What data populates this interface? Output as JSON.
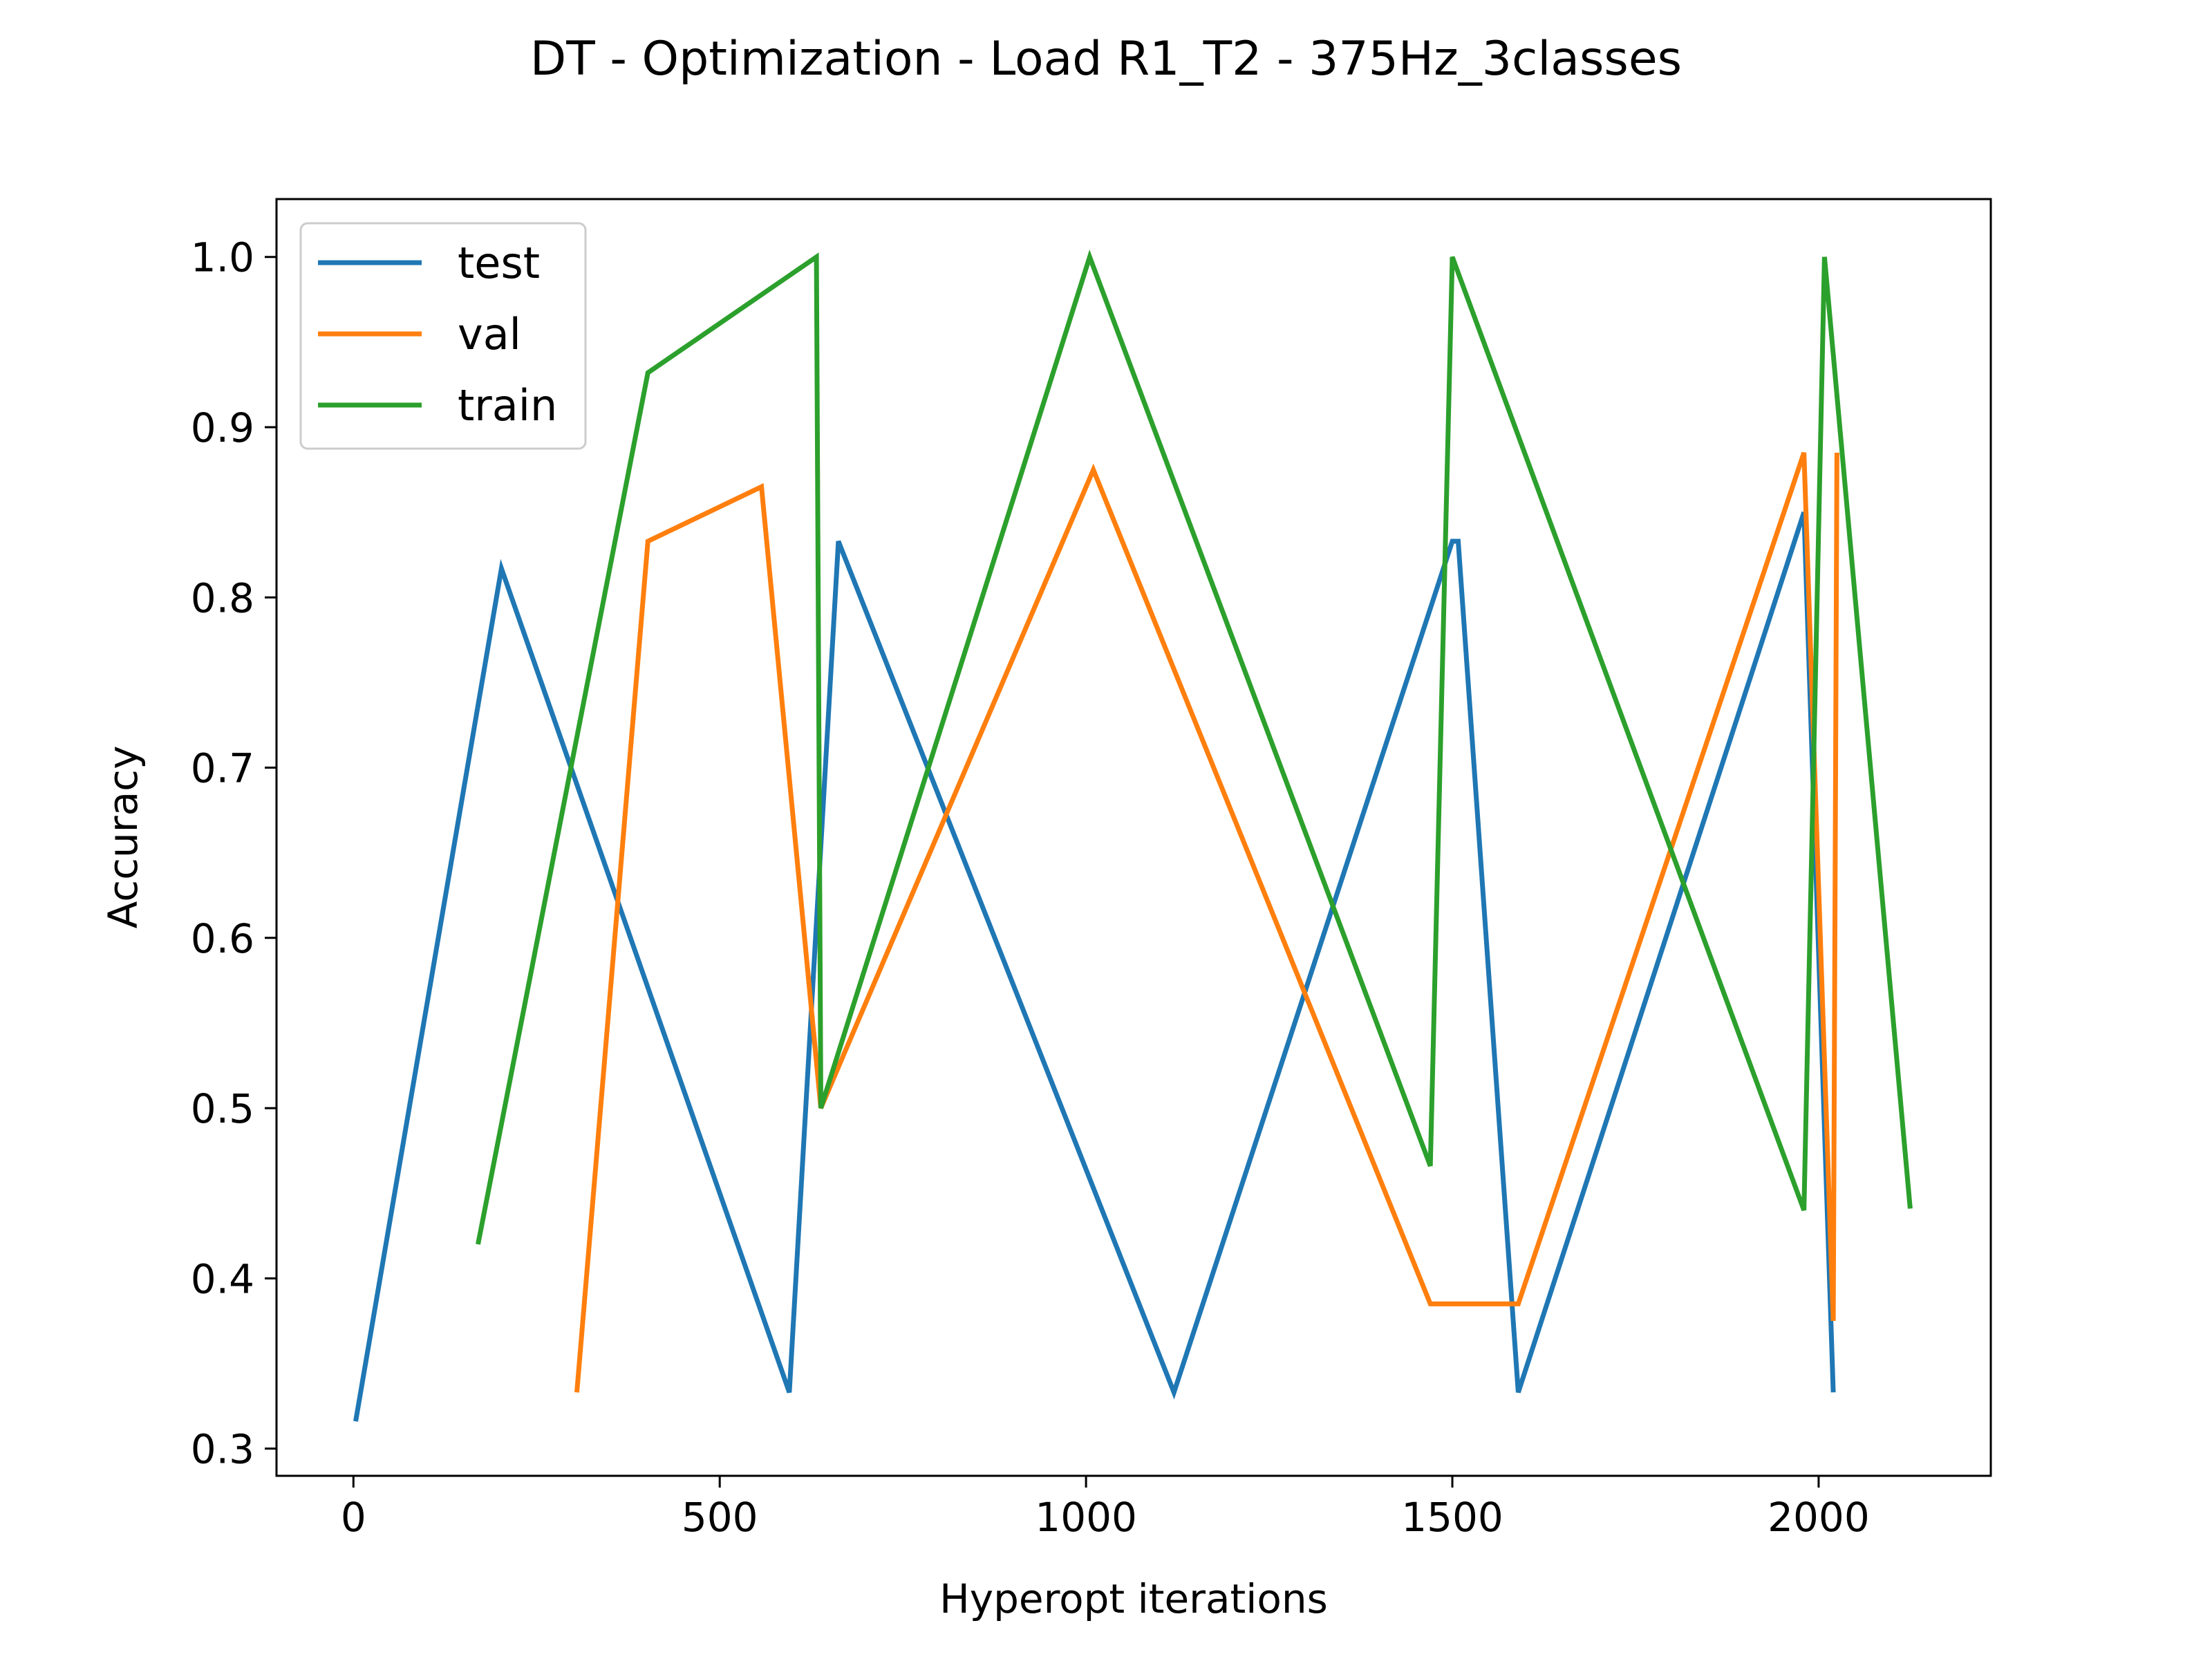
{
  "chart_data": {
    "type": "line",
    "title": "DT - Optimization - Load R1_T2 - 375Hz_3classes",
    "xlabel": "Hyperopt iterations",
    "ylabel": "Accuracy",
    "xlim": [
      -105,
      2235
    ],
    "ylim": [
      0.284,
      1.034
    ],
    "xticks": [
      0,
      500,
      1000,
      1500,
      2000
    ],
    "xtick_labels": [
      "0",
      "500",
      "1000",
      "1500",
      "2000"
    ],
    "yticks": [
      0.3,
      0.4,
      0.5,
      0.6,
      0.7,
      0.8,
      0.9,
      1.0
    ],
    "ytick_labels": [
      "0.3",
      "0.4",
      "0.5",
      "0.6",
      "0.7",
      "0.8",
      "0.9",
      "1.0"
    ],
    "grid": false,
    "legend_position": "top-left",
    "series": [
      {
        "name": "test",
        "color": "#1f77b4",
        "points": [
          [
            3,
            0.316
          ],
          [
            202,
            0.817
          ],
          [
            595,
            0.333
          ],
          [
            662,
            0.833
          ],
          [
            1120,
            0.333
          ],
          [
            1500,
            0.833
          ],
          [
            1508,
            0.833
          ],
          [
            1590,
            0.333
          ],
          [
            1980,
            0.85
          ],
          [
            2020,
            0.333
          ]
        ]
      },
      {
        "name": "val",
        "color": "#ff7f0e",
        "points": [
          [
            305,
            0.333
          ],
          [
            402,
            0.833
          ],
          [
            557,
            0.865
          ],
          [
            638,
            0.5
          ],
          [
            1010,
            0.875
          ],
          [
            1470,
            0.385
          ],
          [
            1590,
            0.385
          ],
          [
            1980,
            0.885
          ],
          [
            2020,
            0.375
          ],
          [
            2025,
            0.885
          ]
        ]
      },
      {
        "name": "train",
        "color": "#2ca02c",
        "points": [
          [
            170,
            0.42
          ],
          [
            402,
            0.932
          ],
          [
            632,
            1.0
          ],
          [
            638,
            0.5
          ],
          [
            1005,
            1.0
          ],
          [
            1470,
            0.466
          ],
          [
            1500,
            1.0
          ],
          [
            1980,
            0.44
          ],
          [
            2008,
            1.0
          ],
          [
            2125,
            0.441
          ]
        ]
      }
    ]
  }
}
